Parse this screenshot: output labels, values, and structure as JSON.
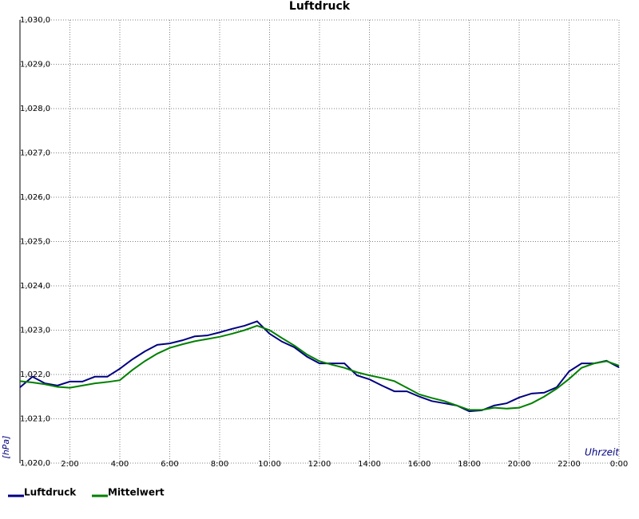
{
  "chart_data": {
    "type": "line",
    "title": "Luftdruck",
    "y_label": "[hPa]",
    "x_label": "Uhrzeit",
    "x": [
      0,
      0.5,
      1,
      1.5,
      2,
      2.5,
      3,
      3.5,
      4,
      4.5,
      5,
      5.5,
      6,
      6.5,
      7,
      7.5,
      8,
      8.5,
      9,
      9.5,
      10,
      10.5,
      11,
      11.5,
      12,
      12.5,
      13,
      13.5,
      14,
      14.5,
      15,
      15.5,
      16,
      16.5,
      17,
      17.5,
      18,
      18.5,
      19,
      19.5,
      20,
      20.5,
      21,
      21.5,
      22,
      22.5,
      23,
      23.5,
      24
    ],
    "series": [
      {
        "name": "Luftdruck",
        "color": "#000080",
        "values": [
          1021.71,
          1021.95,
          1021.8,
          1021.75,
          1021.84,
          1021.84,
          1021.95,
          1021.95,
          1022.13,
          1022.34,
          1022.52,
          1022.67,
          1022.7,
          1022.77,
          1022.86,
          1022.88,
          1022.95,
          1023.03,
          1023.1,
          1023.2,
          1022.92,
          1022.74,
          1022.61,
          1022.4,
          1022.25,
          1022.25,
          1022.25,
          1021.98,
          1021.89,
          1021.75,
          1021.62,
          1021.62,
          1021.5,
          1021.4,
          1021.35,
          1021.3,
          1021.17,
          1021.19,
          1021.3,
          1021.35,
          1021.48,
          1021.57,
          1021.59,
          1021.71,
          1022.07,
          1022.25,
          1022.25,
          1022.31,
          1022.16
        ]
      },
      {
        "name": "Mittelwert",
        "color": "#008000",
        "values": [
          1021.85,
          1021.82,
          1021.78,
          1021.72,
          1021.7,
          1021.75,
          1021.8,
          1021.83,
          1021.87,
          1022.1,
          1022.3,
          1022.47,
          1022.6,
          1022.68,
          1022.75,
          1022.8,
          1022.85,
          1022.92,
          1023.0,
          1023.1,
          1023.0,
          1022.82,
          1022.65,
          1022.45,
          1022.3,
          1022.22,
          1022.15,
          1022.05,
          1021.98,
          1021.92,
          1021.85,
          1021.7,
          1021.55,
          1021.47,
          1021.4,
          1021.3,
          1021.2,
          1021.2,
          1021.25,
          1021.23,
          1021.25,
          1021.35,
          1021.5,
          1021.68,
          1021.9,
          1022.15,
          1022.25,
          1022.3,
          1022.2
        ]
      }
    ],
    "xlim": [
      0,
      24
    ],
    "xticks": [
      {
        "value": 2,
        "label": "2:00"
      },
      {
        "value": 4,
        "label": "4:00"
      },
      {
        "value": 6,
        "label": "6:00"
      },
      {
        "value": 8,
        "label": "8:00"
      },
      {
        "value": 10,
        "label": "10:00"
      },
      {
        "value": 12,
        "label": "12:00"
      },
      {
        "value": 14,
        "label": "14:00"
      },
      {
        "value": 16,
        "label": "16:00"
      },
      {
        "value": 18,
        "label": "18:00"
      },
      {
        "value": 20,
        "label": "20:00"
      },
      {
        "value": 22,
        "label": "22:00"
      },
      {
        "value": 24,
        "label": "0:00"
      }
    ],
    "ylim": [
      1020,
      1030
    ],
    "yticks": [
      {
        "value": 1020,
        "label": "1,020,0"
      },
      {
        "value": 1021,
        "label": "1,021,0"
      },
      {
        "value": 1022,
        "label": "1,022,0"
      },
      {
        "value": 1023,
        "label": "1,023,0"
      },
      {
        "value": 1024,
        "label": "1,024,0"
      },
      {
        "value": 1025,
        "label": "1,025,0"
      },
      {
        "value": 1026,
        "label": "1,026,0"
      },
      {
        "value": 1027,
        "label": "1,027,0"
      },
      {
        "value": 1028,
        "label": "1,028,0"
      },
      {
        "value": 1029,
        "label": "1,029,0"
      },
      {
        "value": 1030,
        "label": "1,030,0"
      }
    ],
    "grid": true
  }
}
